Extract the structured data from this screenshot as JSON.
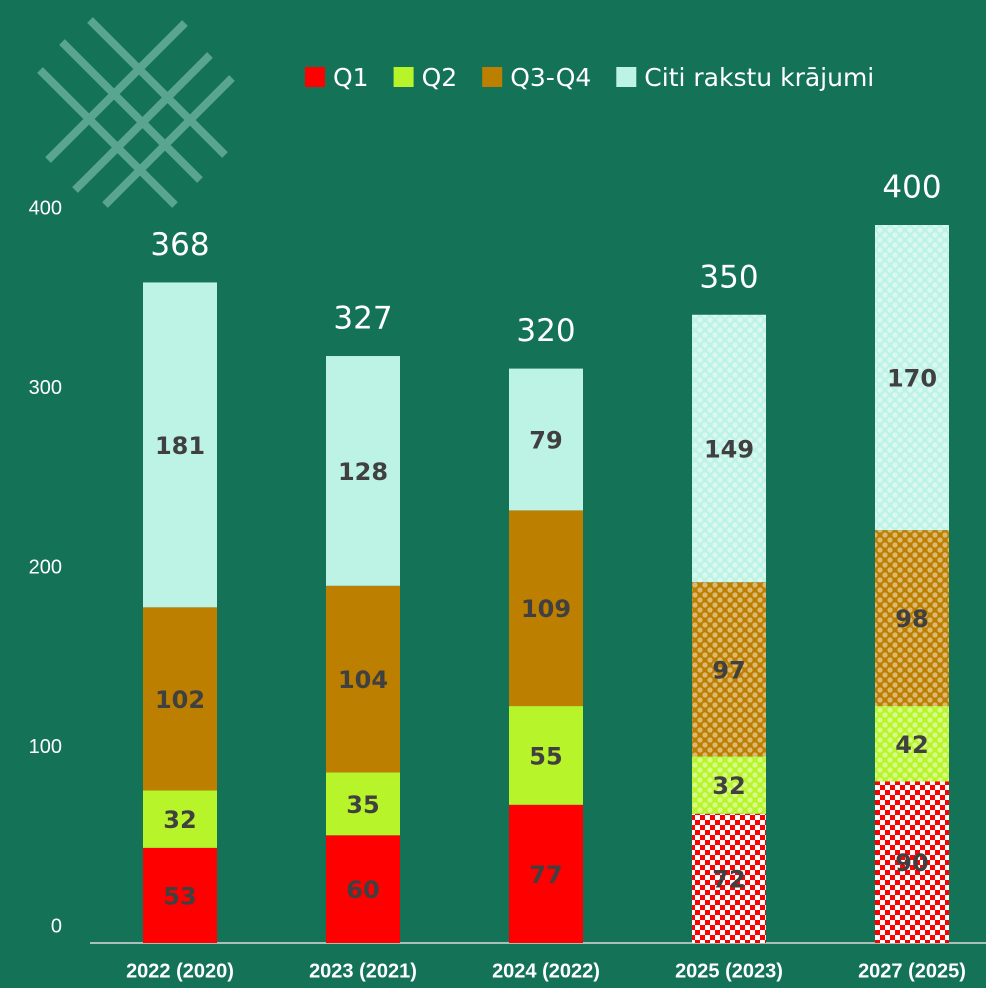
{
  "chart_data": {
    "type": "stacked_bar",
    "categories": [
      "2022 (2020)",
      "2023 (2021)",
      "2024 (2022)",
      "2025 (2023)",
      "2027 (2025)"
    ],
    "series": [
      {
        "name": "Q1",
        "color": "#ff0000",
        "values": [
          53,
          60,
          77,
          72,
          90
        ]
      },
      {
        "name": "Q2",
        "color": "#b7f52a",
        "values": [
          32,
          35,
          55,
          32,
          42
        ]
      },
      {
        "name": "Q3-Q4",
        "color": "#bd7f00",
        "values": [
          102,
          104,
          109,
          97,
          98
        ]
      },
      {
        "name": "Citi rakstu krājumi",
        "color": "#bdf3e4",
        "values": [
          181,
          128,
          79,
          149,
          170
        ]
      }
    ],
    "totals": [
      368,
      327,
      320,
      350,
      400
    ],
    "patterned": [
      false,
      false,
      false,
      true,
      true
    ],
    "ylim": [
      0,
      400
    ],
    "yticks": [
      0,
      100,
      200,
      300,
      400
    ],
    "legend": "top"
  }
}
